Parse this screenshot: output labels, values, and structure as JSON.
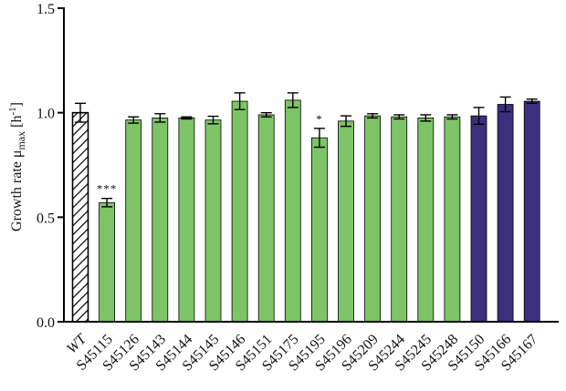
{
  "chart_data": {
    "type": "bar",
    "ylabel_main": "Growth rate μ",
    "ylabel_sub": "max",
    "ylabel_unit": "[h",
    "ylabel_unit_sup": "-1",
    "ylabel_unit_close": "]",
    "ylim": [
      0,
      1.5
    ],
    "yticks": [
      0.0,
      0.5,
      1.0,
      1.5
    ],
    "ytick_labels": [
      "0.0",
      "0.5",
      "1.0",
      "1.5"
    ],
    "categories": [
      "WT",
      "S45115",
      "S45126",
      "S45143",
      "S45144",
      "S45145",
      "S45146",
      "S45151",
      "S45175",
      "S45195",
      "S45196",
      "S45209",
      "S45244",
      "S45245",
      "S45248",
      "S45150",
      "S45166",
      "S45167"
    ],
    "values": [
      1.0,
      0.57,
      0.965,
      0.975,
      0.975,
      0.965,
      1.055,
      0.99,
      1.06,
      0.88,
      0.96,
      0.985,
      0.98,
      0.975,
      0.98,
      0.985,
      1.04,
      1.055
    ],
    "errors": [
      0.045,
      0.02,
      0.015,
      0.02,
      0.005,
      0.018,
      0.04,
      0.01,
      0.035,
      0.045,
      0.025,
      0.01,
      0.01,
      0.015,
      0.01,
      0.04,
      0.035,
      0.01
    ],
    "groups": [
      "hatched",
      "green",
      "green",
      "green",
      "green",
      "green",
      "green",
      "green",
      "green",
      "green",
      "green",
      "green",
      "green",
      "green",
      "green",
      "purple",
      "purple",
      "purple"
    ],
    "annotations": [
      "",
      "***",
      "",
      "",
      "",
      "",
      "",
      "",
      "",
      "*",
      "",
      "",
      "",
      "",
      "",
      "",
      "",
      ""
    ],
    "colors": {
      "green": "#7dc466",
      "purple": "#3c2f7d",
      "hatched_fill": "#ffffff",
      "stroke": "#000000"
    },
    "grid": false,
    "legend": "none"
  }
}
